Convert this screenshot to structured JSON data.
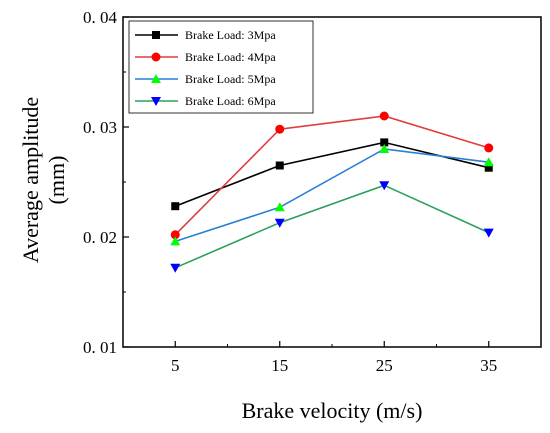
{
  "chart_data": {
    "type": "line",
    "title": "",
    "xlabel": "Brake velocity (m/s)",
    "ylabel_line1": "Average amplitude",
    "ylabel_line2": "(mm)",
    "x": [
      5,
      15,
      25,
      35
    ],
    "x_tick_labels": [
      "5",
      "15",
      "25",
      "35"
    ],
    "xlim": [
      0,
      40
    ],
    "ylim": [
      0.01,
      0.04
    ],
    "y_ticks": [
      0.01,
      0.02,
      0.03,
      0.04
    ],
    "y_tick_labels": [
      "0. 01",
      "0. 02",
      "0. 03",
      "0. 04"
    ],
    "grid": false,
    "legend_position": "top-left",
    "series": [
      {
        "name": "Brake Load: 3Mpa",
        "values": [
          0.0228,
          0.0265,
          0.0286,
          0.0263
        ],
        "color": "#000000",
        "marker": "square"
      },
      {
        "name": "Brake Load: 4Mpa",
        "values": [
          0.0202,
          0.0298,
          0.031,
          0.0281
        ],
        "color": "#ff0000",
        "line_color": "#e03c3c",
        "marker": "circle"
      },
      {
        "name": "Brake Load: 5Mpa",
        "values": [
          0.0196,
          0.0227,
          0.028,
          0.0268
        ],
        "color": "#00ff00",
        "line_color": "#2a7fd6",
        "marker": "triangle-up"
      },
      {
        "name": "Brake Load: 6Mpa",
        "values": [
          0.0172,
          0.0213,
          0.0247,
          0.0204
        ],
        "color": "#0000ff",
        "line_color": "#2ca05a",
        "marker": "triangle-down"
      }
    ]
  }
}
